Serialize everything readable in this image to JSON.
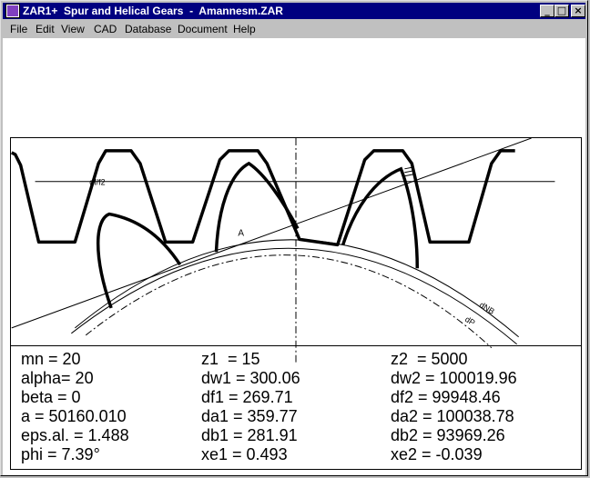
{
  "window": {
    "title": "ZAR1+  Spur and Helical Gears  -  Amannesm.ZAR",
    "buttons": {
      "minimize": "_",
      "maximize": "□",
      "close": "×"
    }
  },
  "menu": [
    "File",
    "Edit",
    "View",
    "CAD",
    "Database",
    "Document",
    "Help"
  ],
  "drawing": {
    "labels": {
      "df2": "df/f2",
      "point_a": "A",
      "circle_1": "dNB",
      "circle_2": "dP"
    }
  },
  "params": {
    "col1": [
      "mn = 20",
      "alpha= 20",
      "beta = 0",
      "a = 50160.010",
      "eps.al. = 1.488",
      "phi = 7.39°"
    ],
    "col2": [
      "z1  = 15",
      "dw1 = 300.06",
      "df1 = 269.71",
      "da1 = 359.77",
      "db1 = 281.91",
      "xe1 = 0.493"
    ],
    "col3": [
      "z2  = 5000",
      "dw2 = 100019.96",
      "df2 = 99948.46",
      "da2 = 100038.78",
      "db2 = 93969.26",
      "xe2 = -0.039"
    ]
  }
}
